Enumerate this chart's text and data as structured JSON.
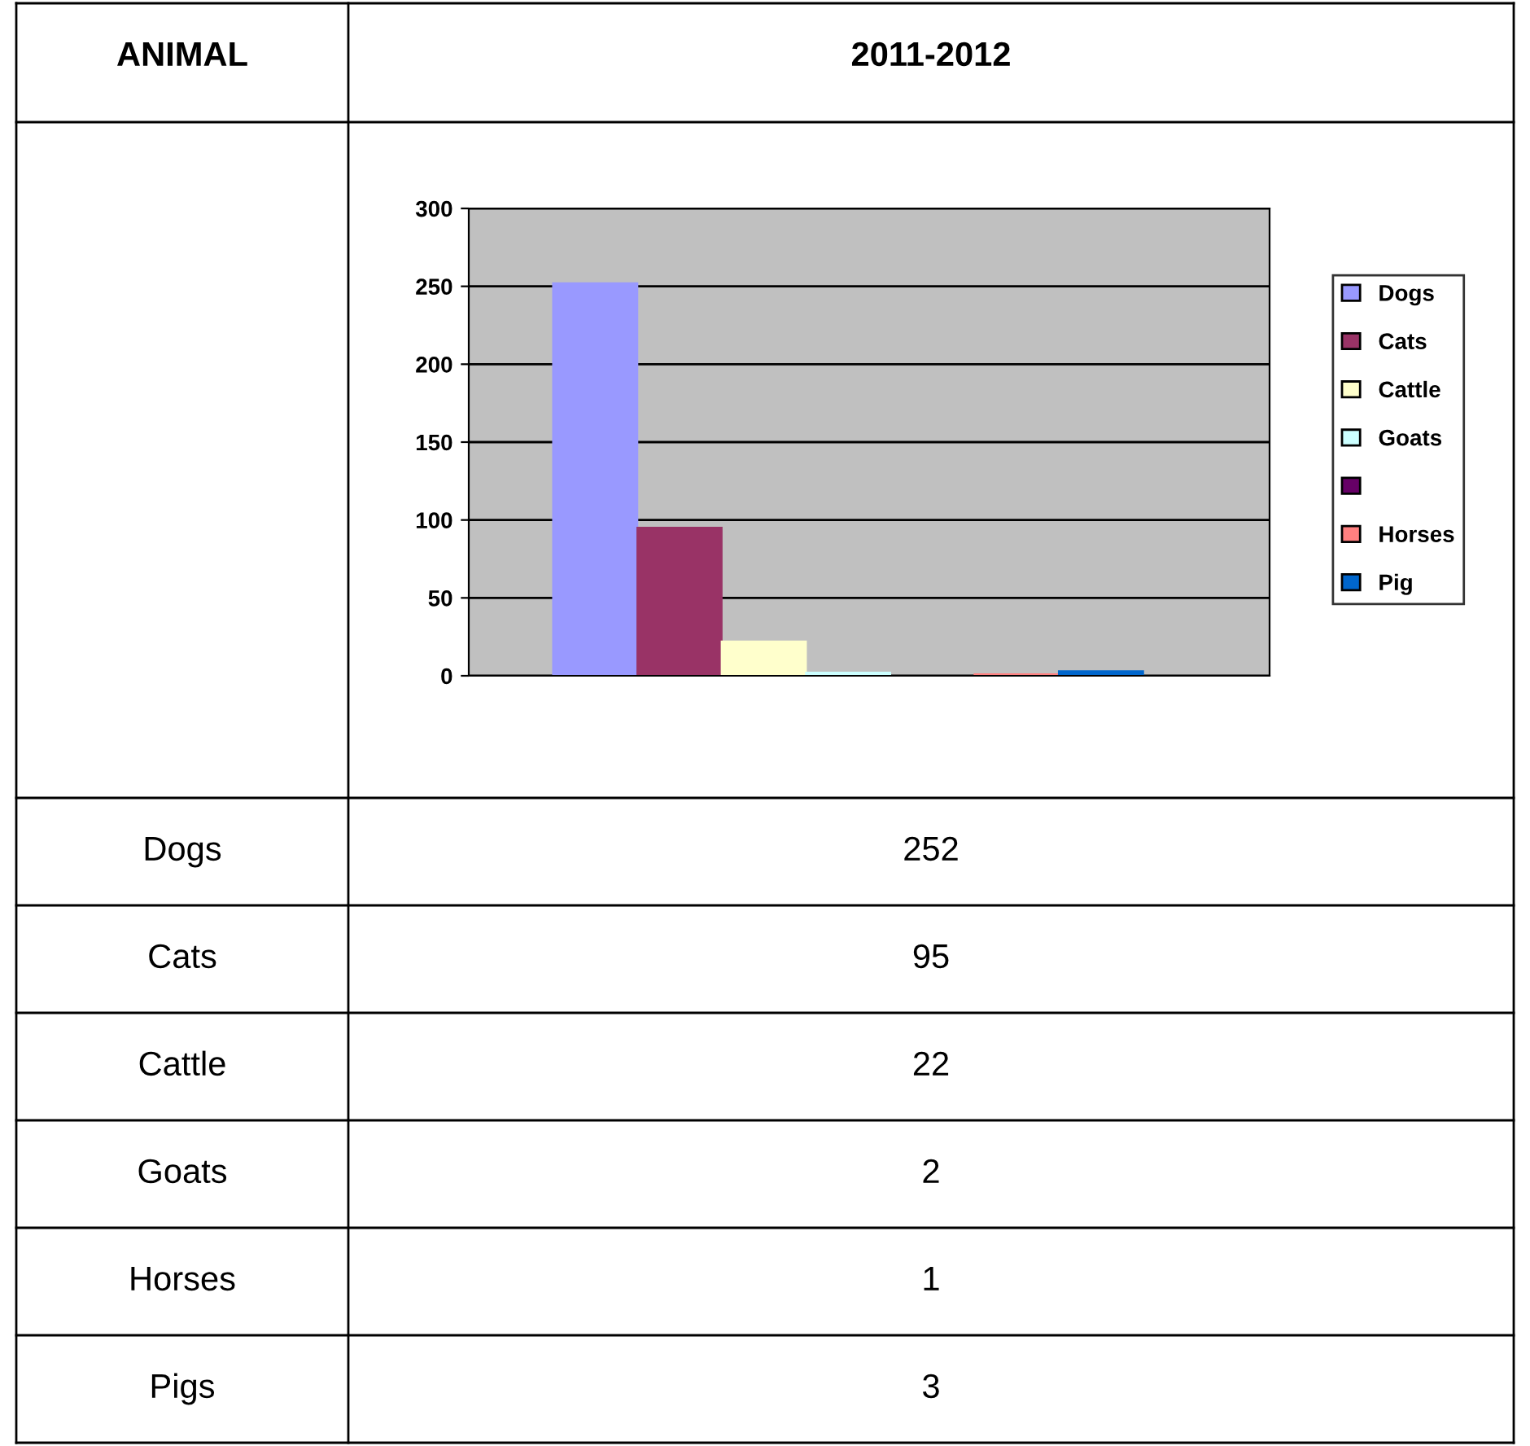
{
  "chart_data": {
    "type": "bar",
    "categories": [
      null
    ],
    "series": [
      {
        "name": "Dogs",
        "color": "#9999ff",
        "values": [
          252
        ]
      },
      {
        "name": "Cats",
        "color": "#993366",
        "values": [
          95
        ]
      },
      {
        "name": "Cattle",
        "color": "#ffffcc",
        "values": [
          22
        ]
      },
      {
        "name": "Goats",
        "color": "#ccffff",
        "values": [
          2
        ]
      },
      {
        "color": "#660066",
        "values": [
          0
        ]
      },
      {
        "name": "Horses",
        "color": "#ff8080",
        "values": [
          1
        ]
      },
      {
        "name": "Pig",
        "color": "#0066cc",
        "values": [
          3
        ]
      }
    ],
    "ylim": [
      0,
      300
    ],
    "yticks": [
      0,
      50,
      100,
      150,
      200,
      250,
      300
    ],
    "grid": "y",
    "legend": "right",
    "annotations": [
      "ANIMAL",
      "2011-2012",
      "Dogs",
      "252",
      "Cats",
      "95",
      "Cattle",
      "22",
      "Goats",
      "2",
      "Horses",
      "1",
      "Pigs",
      "3"
    ]
  }
}
